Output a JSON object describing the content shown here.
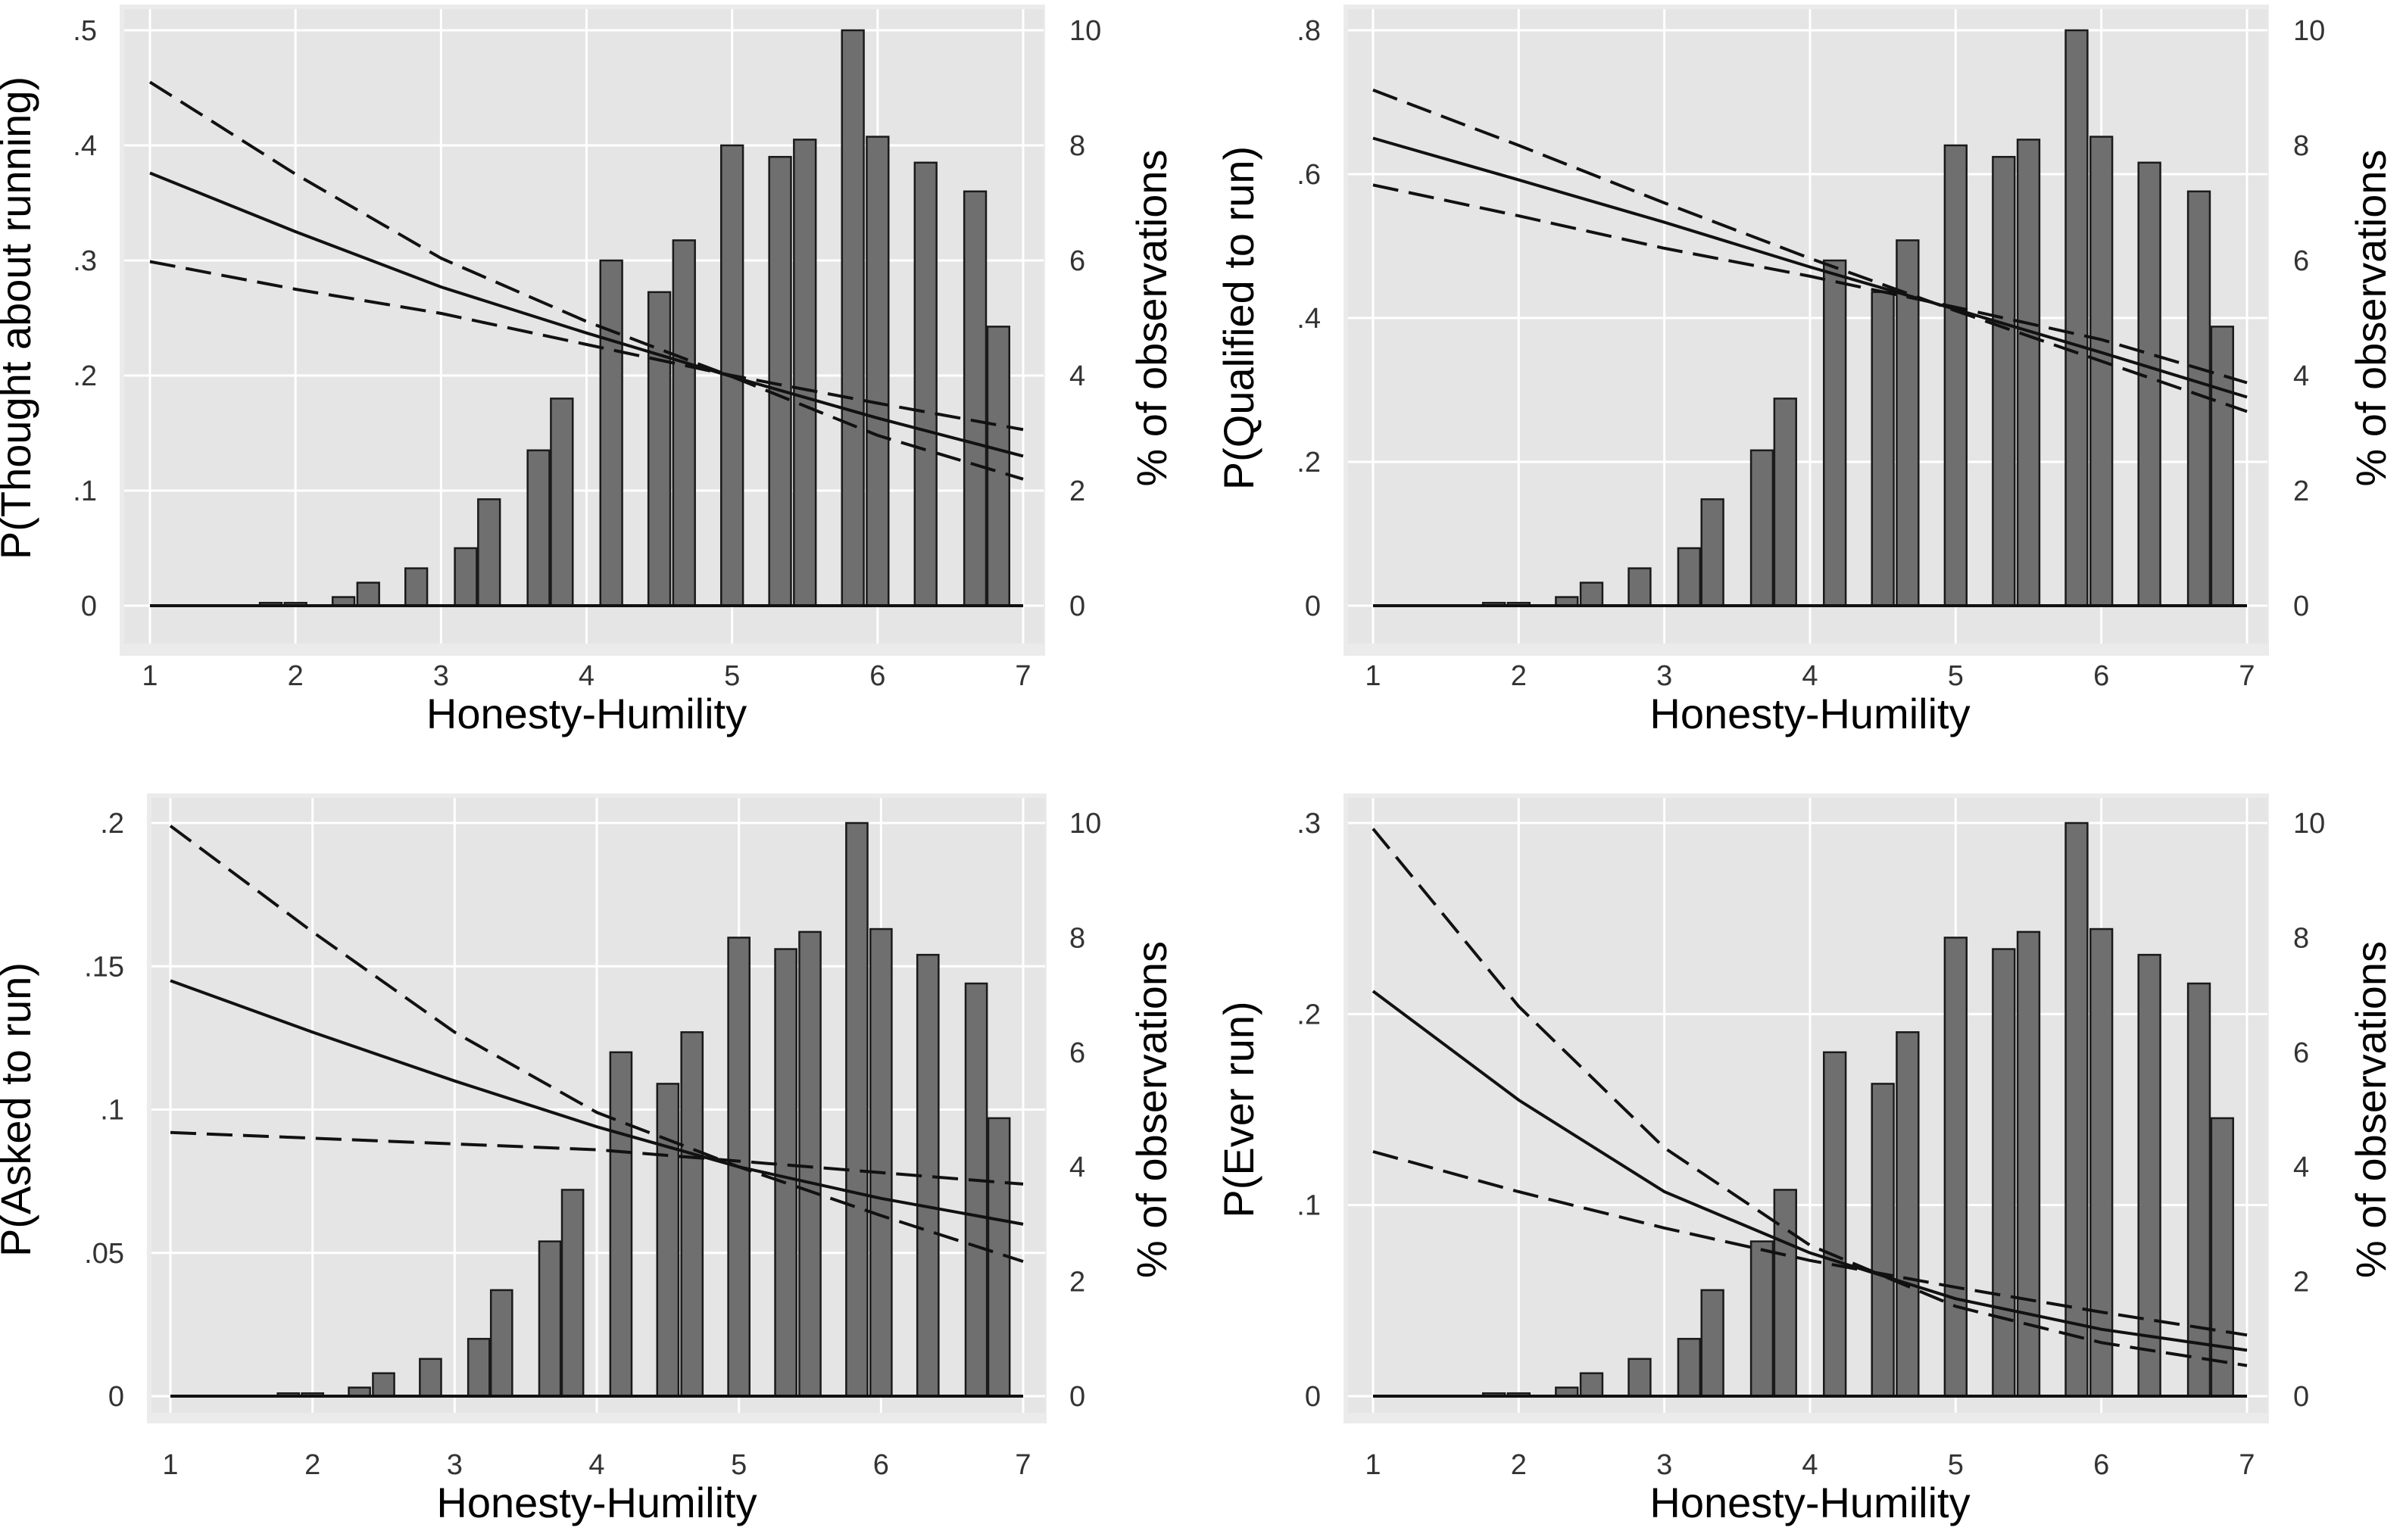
{
  "chart_data": [
    {
      "type": "bar+line",
      "xlabel": "Honesty-Humility",
      "ylabel": "P(Thought about running)",
      "y2label": "% of observations",
      "xlim": [
        1,
        7
      ],
      "xticks": [
        "1",
        "2",
        "3",
        "4",
        "5",
        "6",
        "7"
      ],
      "ylim": [
        0,
        0.5
      ],
      "yticks": [
        {
          "v": 0,
          "label": "0"
        },
        {
          "v": 0.1,
          "label": ".1"
        },
        {
          "v": 0.2,
          "label": ".2"
        },
        {
          "v": 0.3,
          "label": ".3"
        },
        {
          "v": 0.4,
          "label": ".4"
        },
        {
          "v": 0.5,
          "label": ".5"
        }
      ],
      "y2lim": [
        0,
        10
      ],
      "y2ticks": [
        "0",
        "2",
        "4",
        "6",
        "8",
        "10"
      ],
      "grid": true,
      "bars": {
        "x": [
          1.17,
          1.33,
          1.5,
          1.67,
          1.83,
          2.0,
          2.17,
          2.33,
          2.5,
          2.67,
          2.83,
          3.0,
          3.17,
          3.33,
          3.5,
          3.67,
          3.83,
          4.0,
          4.17,
          4.33,
          4.5,
          4.67,
          4.83,
          5.0,
          5.17,
          5.33,
          5.5,
          5.67,
          5.83,
          6.0,
          6.17,
          6.33,
          6.5,
          6.67,
          6.83,
          7.0
        ],
        "values": [
          0,
          0,
          0,
          0,
          0.05,
          0.05,
          0,
          0.15,
          0.4,
          0,
          0.65,
          0,
          1.0,
          1.85,
          0,
          2.7,
          3.6,
          0,
          6.0,
          0,
          5.45,
          6.35,
          0,
          8.0,
          0,
          7.8,
          8.1,
          0,
          10.0,
          8.15,
          0,
          7.7,
          0,
          7.2,
          4.85,
          0
        ]
      },
      "series": [
        {
          "name": "",
          "style": "solid",
          "x": [
            1,
            2,
            3,
            4,
            5,
            6,
            7
          ],
          "y": [
            0.376,
            0.325,
            0.277,
            0.237,
            0.199,
            0.163,
            0.13
          ]
        },
        {
          "name": "",
          "style": "dashed",
          "x": [
            1,
            2,
            3,
            4,
            5,
            6,
            7
          ],
          "y": [
            0.455,
            0.375,
            0.302,
            0.247,
            0.199,
            0.148,
            0.11
          ]
        },
        {
          "name": "",
          "style": "dashed",
          "x": [
            1,
            2,
            3,
            4,
            5,
            6,
            7
          ],
          "y": [
            0.299,
            0.275,
            0.254,
            0.227,
            0.2,
            0.176,
            0.153
          ]
        }
      ]
    },
    {
      "type": "bar+line",
      "xlabel": "Honesty-Humility",
      "ylabel": "P(Qualified to run)",
      "y2label": "% of observations",
      "xlim": [
        1,
        7
      ],
      "xticks": [
        "1",
        "2",
        "3",
        "4",
        "5",
        "6",
        "7"
      ],
      "ylim": [
        0,
        0.8
      ],
      "yticks": [
        {
          "v": 0,
          "label": "0"
        },
        {
          "v": 0.2,
          "label": ".2"
        },
        {
          "v": 0.4,
          "label": ".4"
        },
        {
          "v": 0.6,
          "label": ".6"
        },
        {
          "v": 0.8,
          "label": ".8"
        }
      ],
      "y2lim": [
        0,
        10
      ],
      "y2ticks": [
        "0",
        "2",
        "4",
        "6",
        "8",
        "10"
      ],
      "grid": true,
      "bars": {
        "x": [
          1.17,
          1.33,
          1.5,
          1.67,
          1.83,
          2.0,
          2.17,
          2.33,
          2.5,
          2.67,
          2.83,
          3.0,
          3.17,
          3.33,
          3.5,
          3.67,
          3.83,
          4.0,
          4.17,
          4.33,
          4.5,
          4.67,
          4.83,
          5.0,
          5.17,
          5.33,
          5.5,
          5.67,
          5.83,
          6.0,
          6.17,
          6.33,
          6.5,
          6.67,
          6.83,
          7.0
        ],
        "values": [
          0,
          0,
          0,
          0,
          0.05,
          0.05,
          0,
          0.15,
          0.4,
          0,
          0.65,
          0,
          1.0,
          1.85,
          0,
          2.7,
          3.6,
          0,
          6.0,
          0,
          5.45,
          6.35,
          0,
          8.0,
          0,
          7.8,
          8.1,
          0,
          10.0,
          8.15,
          0,
          7.7,
          0,
          7.2,
          4.85,
          0
        ]
      },
      "series": [
        {
          "name": "",
          "style": "solid",
          "x": [
            1,
            2,
            3,
            4,
            5,
            6,
            7
          ],
          "y": [
            0.65,
            0.592,
            0.533,
            0.471,
            0.412,
            0.352,
            0.29
          ]
        },
        {
          "name": "",
          "style": "dashed",
          "x": [
            1,
            2,
            3,
            4,
            5,
            6,
            7
          ],
          "y": [
            0.717,
            0.64,
            0.56,
            0.483,
            0.41,
            0.34,
            0.27
          ]
        },
        {
          "name": "",
          "style": "dashed",
          "x": [
            1,
            2,
            3,
            4,
            5,
            6,
            7
          ],
          "y": [
            0.585,
            0.542,
            0.497,
            0.458,
            0.415,
            0.37,
            0.31
          ]
        }
      ]
    },
    {
      "type": "bar+line",
      "xlabel": "Honesty-Humility",
      "ylabel": "P(Asked to run)",
      "y2label": "% of observations",
      "xlim": [
        1,
        7
      ],
      "xticks": [
        "1",
        "2",
        "3",
        "4",
        "5",
        "6",
        "7"
      ],
      "ylim": [
        0,
        0.2
      ],
      "yticks": [
        {
          "v": 0,
          "label": "0"
        },
        {
          "v": 0.05,
          "label": ".05"
        },
        {
          "v": 0.1,
          "label": ".1"
        },
        {
          "v": 0.15,
          "label": ".15"
        },
        {
          "v": 0.2,
          "label": ".2"
        }
      ],
      "y2lim": [
        0,
        10
      ],
      "y2ticks": [
        "0",
        "2",
        "4",
        "6",
        "8",
        "10"
      ],
      "grid": true,
      "bars": {
        "x": [
          1.17,
          1.33,
          1.5,
          1.67,
          1.83,
          2.0,
          2.17,
          2.33,
          2.5,
          2.67,
          2.83,
          3.0,
          3.17,
          3.33,
          3.5,
          3.67,
          3.83,
          4.0,
          4.17,
          4.33,
          4.5,
          4.67,
          4.83,
          5.0,
          5.17,
          5.33,
          5.5,
          5.67,
          5.83,
          6.0,
          6.17,
          6.33,
          6.5,
          6.67,
          6.83,
          7.0
        ],
        "values": [
          0,
          0,
          0,
          0,
          0.05,
          0.05,
          0,
          0.15,
          0.4,
          0,
          0.65,
          0,
          1.0,
          1.85,
          0,
          2.7,
          3.6,
          0,
          6.0,
          0,
          5.45,
          6.35,
          0,
          8.0,
          0,
          7.8,
          8.1,
          0,
          10.0,
          8.15,
          0,
          7.7,
          0,
          7.2,
          4.85,
          0
        ]
      },
      "series": [
        {
          "name": "",
          "style": "solid",
          "x": [
            1,
            2,
            3,
            4,
            5,
            6,
            7
          ],
          "y": [
            0.145,
            0.127,
            0.11,
            0.094,
            0.08,
            0.069,
            0.06
          ]
        },
        {
          "name": "",
          "style": "dashed",
          "x": [
            1,
            2,
            3,
            4,
            5,
            6,
            7
          ],
          "y": [
            0.199,
            0.162,
            0.127,
            0.099,
            0.08,
            0.063,
            0.047
          ]
        },
        {
          "name": "",
          "style": "dashed",
          "x": [
            1,
            2,
            3,
            4,
            5,
            6,
            7
          ],
          "y": [
            0.092,
            0.09,
            0.088,
            0.086,
            0.082,
            0.078,
            0.074
          ]
        }
      ]
    },
    {
      "type": "bar+line",
      "xlabel": "Honesty-Humility",
      "ylabel": "P(Ever run)",
      "y2label": "% of observations",
      "xlim": [
        1,
        7
      ],
      "xticks": [
        "1",
        "2",
        "3",
        "4",
        "5",
        "6",
        "7"
      ],
      "ylim": [
        0,
        0.3
      ],
      "yticks": [
        {
          "v": 0,
          "label": "0"
        },
        {
          "v": 0.1,
          "label": ".1"
        },
        {
          "v": 0.2,
          "label": ".2"
        },
        {
          "v": 0.3,
          "label": ".3"
        }
      ],
      "y2lim": [
        0,
        10
      ],
      "y2ticks": [
        "0",
        "2",
        "4",
        "6",
        "8",
        "10"
      ],
      "grid": true,
      "bars": {
        "x": [
          1.17,
          1.33,
          1.5,
          1.67,
          1.83,
          2.0,
          2.17,
          2.33,
          2.5,
          2.67,
          2.83,
          3.0,
          3.17,
          3.33,
          3.5,
          3.67,
          3.83,
          4.0,
          4.17,
          4.33,
          4.5,
          4.67,
          4.83,
          5.0,
          5.17,
          5.33,
          5.5,
          5.67,
          5.83,
          6.0,
          6.17,
          6.33,
          6.5,
          6.67,
          6.83,
          7.0
        ],
        "values": [
          0,
          0,
          0,
          0,
          0.05,
          0.05,
          0,
          0.15,
          0.4,
          0,
          0.65,
          0,
          1.0,
          1.85,
          0,
          2.7,
          3.6,
          0,
          6.0,
          0,
          5.45,
          6.35,
          0,
          8.0,
          0,
          7.8,
          8.1,
          0,
          10.0,
          8.15,
          0,
          7.7,
          0,
          7.2,
          4.85,
          0
        ]
      },
      "series": [
        {
          "name": "",
          "style": "solid",
          "x": [
            1,
            2,
            3,
            4,
            5,
            6,
            7
          ],
          "y": [
            0.212,
            0.155,
            0.107,
            0.075,
            0.051,
            0.035,
            0.024
          ]
        },
        {
          "name": "",
          "style": "dashed",
          "x": [
            1,
            2,
            3,
            4,
            5,
            6,
            7
          ],
          "y": [
            0.297,
            0.204,
            0.13,
            0.079,
            0.047,
            0.028,
            0.016
          ]
        },
        {
          "name": "",
          "style": "dashed",
          "x": [
            1,
            2,
            3,
            4,
            5,
            6,
            7
          ],
          "y": [
            0.128,
            0.107,
            0.088,
            0.071,
            0.057,
            0.044,
            0.032
          ]
        }
      ]
    }
  ],
  "colors": {
    "plot_background": "#e5e5e5",
    "panel_background": "#ebebeb",
    "grid": "#ffffff",
    "bar_fill": "#6f6f6f",
    "bar_stroke": "#1a1a1a",
    "line": "#111111",
    "tick_text": "#333333",
    "title_text": "#000000"
  }
}
